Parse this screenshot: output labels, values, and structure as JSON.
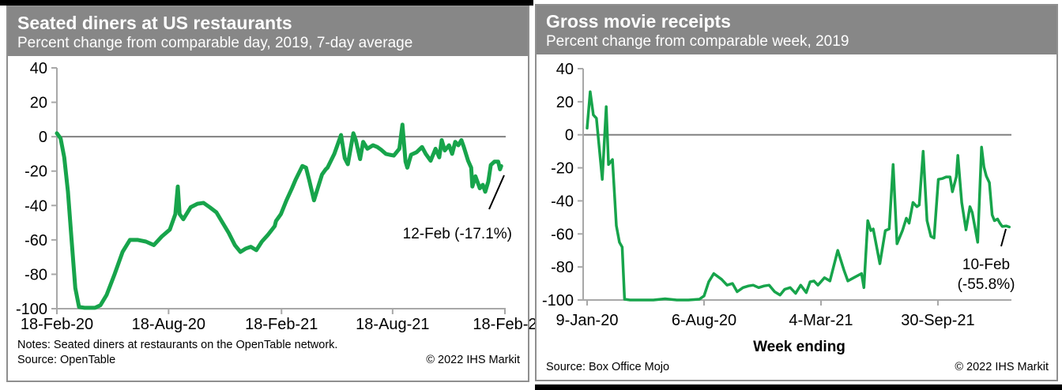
{
  "left_panel": {
    "title": "Seated diners at US restaurants",
    "subtitle": "Percent change from comparable day, 2019, 7-day average",
    "notes": "Notes: Seated diners at restaurants on the OpenTable network.",
    "source": "Source: OpenTable",
    "copyright": "© 2022 IHS Markit"
  },
  "right_panel": {
    "title": "Gross movie receipts",
    "subtitle": "Percent change from comparable week, 2019",
    "xaxis_title": "Week ending",
    "source": "Source: Box Office Mojo",
    "copyright": "© 2022 IHS Markit"
  },
  "chart_data": [
    {
      "type": "line",
      "title": "Seated diners at US restaurants",
      "subtitle": "Percent change from comparable day, 2019, 7-day average",
      "color": "#17a44b",
      "line_width": 5,
      "ylim": [
        -100,
        40
      ],
      "yticks": [
        40,
        20,
        0,
        -20,
        -40,
        -60,
        -80,
        -100
      ],
      "x_unit": "days since 18-Feb-2020",
      "xlim": [
        0,
        730
      ],
      "xticks": [
        {
          "x": 0,
          "label": "18-Feb-20"
        },
        {
          "x": 182,
          "label": "18-Aug-20"
        },
        {
          "x": 366,
          "label": "18-Feb-21"
        },
        {
          "x": 547,
          "label": "18-Aug-21"
        },
        {
          "x": 730,
          "label": "18-Feb-2"
        }
      ],
      "annotation": {
        "lines": [
          "12-Feb (-17.1%)"
        ],
        "x": 724,
        "y": -17.1
      },
      "points": [
        [
          0,
          2
        ],
        [
          6,
          -1
        ],
        [
          12,
          -12
        ],
        [
          18,
          -32
        ],
        [
          24,
          -60
        ],
        [
          30,
          -88
        ],
        [
          36,
          -99
        ],
        [
          45,
          -99.5
        ],
        [
          55,
          -99.5
        ],
        [
          62,
          -99.5
        ],
        [
          71,
          -98
        ],
        [
          81,
          -92
        ],
        [
          94,
          -80
        ],
        [
          107,
          -67
        ],
        [
          119,
          -60
        ],
        [
          132,
          -60
        ],
        [
          145,
          -61
        ],
        [
          158,
          -63
        ],
        [
          171,
          -58
        ],
        [
          184,
          -54
        ],
        [
          193,
          -45
        ],
        [
          197,
          -29
        ],
        [
          200,
          -45
        ],
        [
          206,
          -48
        ],
        [
          218,
          -41
        ],
        [
          229,
          -39
        ],
        [
          239,
          -38.5
        ],
        [
          249,
          -41
        ],
        [
          260,
          -44
        ],
        [
          270,
          -50
        ],
        [
          280,
          -56
        ],
        [
          290,
          -63
        ],
        [
          299,
          -67
        ],
        [
          308,
          -65
        ],
        [
          316,
          -64
        ],
        [
          325,
          -66
        ],
        [
          334,
          -61
        ],
        [
          344,
          -57
        ],
        [
          355,
          -52
        ],
        [
          357,
          -49
        ],
        [
          365,
          -45
        ],
        [
          374,
          -37
        ],
        [
          383,
          -30
        ],
        [
          389,
          -25
        ],
        [
          400,
          -17
        ],
        [
          406,
          -18
        ],
        [
          411,
          -25
        ],
        [
          419,
          -37
        ],
        [
          425,
          -30
        ],
        [
          432,
          -22
        ],
        [
          438,
          -19
        ],
        [
          441,
          -18
        ],
        [
          452,
          -10
        ],
        [
          463,
          1
        ],
        [
          469,
          -12.5
        ],
        [
          474,
          -16
        ],
        [
          483,
          2
        ],
        [
          487,
          -2
        ],
        [
          494,
          -13
        ],
        [
          499,
          -3
        ],
        [
          506,
          -7
        ],
        [
          515,
          -5
        ],
        [
          522,
          -6
        ],
        [
          528,
          -7.5
        ],
        [
          536,
          -10
        ],
        [
          542,
          -10.5
        ],
        [
          549,
          -11
        ],
        [
          558,
          -7
        ],
        [
          563,
          7
        ],
        [
          568,
          -14.5
        ],
        [
          571,
          -18
        ],
        [
          577,
          -10.5
        ],
        [
          586,
          -9
        ],
        [
          595,
          -6
        ],
        [
          601,
          -10
        ],
        [
          609,
          -14
        ],
        [
          617,
          -7
        ],
        [
          623,
          -12
        ],
        [
          627,
          -2
        ],
        [
          632,
          -8
        ],
        [
          639,
          -5
        ],
        [
          644,
          -10
        ],
        [
          649,
          -3
        ],
        [
          654,
          -5
        ],
        [
          659,
          -2
        ],
        [
          663,
          -6
        ],
        [
          670,
          -14
        ],
        [
          675,
          -18
        ],
        [
          677,
          -29
        ],
        [
          682,
          -23
        ],
        [
          689,
          -30
        ],
        [
          694,
          -28
        ],
        [
          698,
          -32
        ],
        [
          703,
          -26
        ],
        [
          707,
          -16.5
        ],
        [
          713,
          -14.5
        ],
        [
          719,
          -14.5
        ],
        [
          722,
          -19
        ],
        [
          724,
          -17.1
        ]
      ]
    },
    {
      "type": "line",
      "title": "Gross movie receipts",
      "subtitle": "Percent change from comparable week, 2019",
      "xlabel": "Week ending",
      "color": "#17a44b",
      "line_width": 3.5,
      "ylim": [
        -100,
        40
      ],
      "yticks": [
        40,
        20,
        0,
        -20,
        -40,
        -60,
        -80,
        -100
      ],
      "x_unit": "weeks since 9-Jan-2020 (week ending)",
      "xlim": [
        0,
        109
      ],
      "xticks": [
        {
          "x": 0,
          "label": "9-Jan-20"
        },
        {
          "x": 30,
          "label": "6-Aug-20"
        },
        {
          "x": 60,
          "label": "4-Mar-21"
        },
        {
          "x": 90,
          "label": "30-Sep-21"
        }
      ],
      "annotation": {
        "lines": [
          "10-Feb",
          "(-55.8%)"
        ],
        "x": 108.3,
        "y": -55.8
      },
      "points": [
        [
          0,
          4
        ],
        [
          0.8,
          26
        ],
        [
          1.6,
          12
        ],
        [
          2.4,
          10
        ],
        [
          3.9,
          -27
        ],
        [
          4.9,
          17
        ],
        [
          5.5,
          -18
        ],
        [
          6.5,
          -15
        ],
        [
          7.5,
          -55
        ],
        [
          8.3,
          -65
        ],
        [
          9,
          -68
        ],
        [
          9.6,
          -99.5
        ],
        [
          11,
          -100
        ],
        [
          14,
          -100
        ],
        [
          17,
          -100
        ],
        [
          20,
          -99.3
        ],
        [
          23,
          -100
        ],
        [
          26,
          -100
        ],
        [
          28.8,
          -99.5
        ],
        [
          30,
          -97.5
        ],
        [
          31.2,
          -89
        ],
        [
          32.5,
          -84
        ],
        [
          34.5,
          -87.5
        ],
        [
          35.9,
          -91
        ],
        [
          37.3,
          -90
        ],
        [
          38.5,
          -95
        ],
        [
          40,
          -92.5
        ],
        [
          41.4,
          -91.5
        ],
        [
          42.6,
          -91
        ],
        [
          44,
          -92.5
        ],
        [
          45.4,
          -91.5
        ],
        [
          46.7,
          -91
        ],
        [
          48.1,
          -95
        ],
        [
          49.5,
          -97
        ],
        [
          50.7,
          -93.5
        ],
        [
          52.1,
          -92.5
        ],
        [
          53.5,
          -96
        ],
        [
          54.8,
          -91
        ],
        [
          56.2,
          -95.5
        ],
        [
          57.2,
          -89
        ],
        [
          58.2,
          -88.5
        ],
        [
          59.2,
          -91
        ],
        [
          60.9,
          -86.5
        ],
        [
          62.3,
          -88.5
        ],
        [
          64.3,
          -70
        ],
        [
          65.9,
          -82
        ],
        [
          66.9,
          -88.5
        ],
        [
          68.4,
          -86.5
        ],
        [
          70.4,
          -84
        ],
        [
          71,
          -92.5
        ],
        [
          72,
          -52
        ],
        [
          72.8,
          -58
        ],
        [
          73.4,
          -57
        ],
        [
          75.1,
          -78
        ],
        [
          76.5,
          -58
        ],
        [
          77.5,
          -57
        ],
        [
          78.5,
          -18
        ],
        [
          79.5,
          -66
        ],
        [
          80.9,
          -58
        ],
        [
          81.9,
          -50.5
        ],
        [
          82.6,
          -53.5
        ],
        [
          83.6,
          -41
        ],
        [
          84.6,
          -43.5
        ],
        [
          85.2,
          -42.5
        ],
        [
          86.2,
          -10
        ],
        [
          87.2,
          -52
        ],
        [
          88.2,
          -61.5
        ],
        [
          89,
          -62.5
        ],
        [
          90.1,
          -27
        ],
        [
          91.1,
          -26.5
        ],
        [
          92.1,
          -25.5
        ],
        [
          93.1,
          -25.5
        ],
        [
          93.7,
          -34.5
        ],
        [
          94.7,
          -25.5
        ],
        [
          95.1,
          -12.5
        ],
        [
          96.1,
          -41
        ],
        [
          97.2,
          -57.5
        ],
        [
          98.2,
          -43.5
        ],
        [
          98.8,
          -47
        ],
        [
          100.2,
          -65
        ],
        [
          101.2,
          -7.5
        ],
        [
          101.8,
          -19.5
        ],
        [
          102.4,
          -25
        ],
        [
          103.2,
          -29
        ],
        [
          103.9,
          -48.5
        ],
        [
          104.5,
          -52
        ],
        [
          105.3,
          -51
        ],
        [
          105.9,
          -53.5
        ],
        [
          106.5,
          -55.5
        ],
        [
          107.5,
          -55.2
        ],
        [
          108.3,
          -55.8
        ]
      ]
    }
  ]
}
